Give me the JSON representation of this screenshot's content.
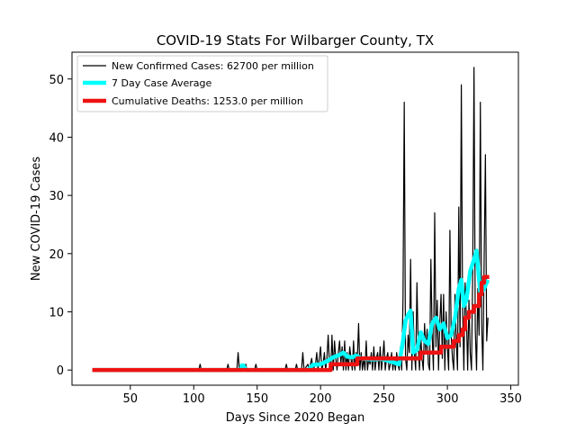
{
  "chart_data": {
    "type": "line",
    "title": "COVID-19 Stats For Wilbarger County, TX",
    "xlabel": "Days Since 2020 Began",
    "ylabel": "New COVID-19 Cases",
    "xlim": [
      4,
      356
    ],
    "ylim": [
      -2.6,
      54.6
    ],
    "xticks": [
      50,
      100,
      150,
      200,
      250,
      300,
      350
    ],
    "yticks": [
      0,
      10,
      20,
      30,
      40,
      50
    ],
    "grid": false,
    "legend_position": "top-left",
    "series": [
      {
        "name": "New Confirmed Cases: 62700 per million",
        "color": "#000000",
        "style": "thin-line",
        "points": [
          [
            20,
            0
          ],
          [
            104,
            0
          ],
          [
            105,
            1
          ],
          [
            106,
            0
          ],
          [
            126,
            0
          ],
          [
            127,
            1
          ],
          [
            128,
            0
          ],
          [
            134,
            0
          ],
          [
            135,
            3
          ],
          [
            136,
            0
          ],
          [
            140,
            0
          ],
          [
            141,
            1
          ],
          [
            142,
            0
          ],
          [
            148,
            0
          ],
          [
            149,
            1
          ],
          [
            150,
            0
          ],
          [
            172,
            0
          ],
          [
            173,
            1
          ],
          [
            174,
            0
          ],
          [
            180,
            0
          ],
          [
            181,
            1
          ],
          [
            182,
            0
          ],
          [
            185,
            0
          ],
          [
            186,
            3
          ],
          [
            187,
            0
          ],
          [
            190,
            1
          ],
          [
            191,
            0
          ],
          [
            193,
            2
          ],
          [
            194,
            0
          ],
          [
            196,
            1
          ],
          [
            197,
            3
          ],
          [
            198,
            0
          ],
          [
            199,
            2
          ],
          [
            200,
            4
          ],
          [
            201,
            0
          ],
          [
            202,
            1
          ],
          [
            203,
            3
          ],
          [
            204,
            0
          ],
          [
            205,
            2
          ],
          [
            206,
            6
          ],
          [
            207,
            1
          ],
          [
            208,
            0
          ],
          [
            209,
            6
          ],
          [
            210,
            0
          ],
          [
            211,
            5
          ],
          [
            212,
            2
          ],
          [
            213,
            0
          ],
          [
            214,
            3
          ],
          [
            215,
            5
          ],
          [
            216,
            1
          ],
          [
            217,
            4
          ],
          [
            218,
            0
          ],
          [
            219,
            5
          ],
          [
            220,
            0
          ],
          [
            221,
            3
          ],
          [
            222,
            0
          ],
          [
            223,
            4
          ],
          [
            224,
            2
          ],
          [
            225,
            0
          ],
          [
            226,
            5
          ],
          [
            227,
            0
          ],
          [
            228,
            3
          ],
          [
            229,
            2
          ],
          [
            230,
            8
          ],
          [
            231,
            0
          ],
          [
            232,
            3
          ],
          [
            233,
            0
          ],
          [
            234,
            2
          ],
          [
            235,
            0
          ],
          [
            236,
            5
          ],
          [
            237,
            0
          ],
          [
            238,
            2
          ],
          [
            239,
            1
          ],
          [
            240,
            3
          ],
          [
            241,
            0
          ],
          [
            242,
            4
          ],
          [
            243,
            0
          ],
          [
            244,
            2
          ],
          [
            245,
            3
          ],
          [
            246,
            0
          ],
          [
            247,
            4
          ],
          [
            248,
            0
          ],
          [
            249,
            2
          ],
          [
            250,
            5
          ],
          [
            251,
            0
          ],
          [
            252,
            2
          ],
          [
            253,
            3
          ],
          [
            254,
            0
          ],
          [
            255,
            1
          ],
          [
            256,
            3
          ],
          [
            257,
            0
          ],
          [
            258,
            2
          ],
          [
            259,
            0
          ],
          [
            260,
            3
          ],
          [
            261,
            1
          ],
          [
            262,
            0
          ],
          [
            263,
            4
          ],
          [
            264,
            0
          ],
          [
            265,
            12
          ],
          [
            266,
            46
          ],
          [
            267,
            2
          ],
          [
            268,
            0
          ],
          [
            269,
            6
          ],
          [
            270,
            3
          ],
          [
            271,
            19
          ],
          [
            272,
            0
          ],
          [
            273,
            10
          ],
          [
            274,
            3
          ],
          [
            275,
            0
          ],
          [
            276,
            15
          ],
          [
            277,
            4
          ],
          [
            278,
            0
          ],
          [
            279,
            6
          ],
          [
            280,
            2
          ],
          [
            281,
            0
          ],
          [
            282,
            8
          ],
          [
            283,
            3
          ],
          [
            284,
            7
          ],
          [
            285,
            1
          ],
          [
            286,
            0
          ],
          [
            287,
            19
          ],
          [
            288,
            6
          ],
          [
            289,
            0
          ],
          [
            290,
            27
          ],
          [
            291,
            4
          ],
          [
            292,
            12
          ],
          [
            293,
            0
          ],
          [
            294,
            8
          ],
          [
            295,
            13
          ],
          [
            296,
            2
          ],
          [
            297,
            13
          ],
          [
            298,
            0
          ],
          [
            299,
            10
          ],
          [
            300,
            4
          ],
          [
            301,
            0
          ],
          [
            302,
            24
          ],
          [
            303,
            6
          ],
          [
            304,
            2
          ],
          [
            305,
            0
          ],
          [
            306,
            13
          ],
          [
            307,
            5
          ],
          [
            308,
            0
          ],
          [
            309,
            28
          ],
          [
            310,
            4
          ],
          [
            311,
            49
          ],
          [
            312,
            10
          ],
          [
            313,
            0
          ],
          [
            314,
            15
          ],
          [
            315,
            9
          ],
          [
            316,
            0
          ],
          [
            317,
            12
          ],
          [
            318,
            3
          ],
          [
            319,
            0
          ],
          [
            320,
            17
          ],
          [
            321,
            52
          ],
          [
            322,
            7
          ],
          [
            323,
            0
          ],
          [
            324,
            14
          ],
          [
            325,
            6
          ],
          [
            326,
            46
          ],
          [
            327,
            8
          ],
          [
            328,
            0
          ],
          [
            329,
            19
          ],
          [
            330,
            37
          ],
          [
            331,
            5
          ],
          [
            332,
            9
          ]
        ]
      },
      {
        "name": "7 Day Case Average",
        "color": "#00ffff",
        "style": "thick-line",
        "points": [
          [
            20,
            0
          ],
          [
            137,
            0
          ],
          [
            138,
            0.8
          ],
          [
            139,
            0.8
          ],
          [
            140,
            0.5
          ],
          [
            141,
            0
          ],
          [
            190,
            0
          ],
          [
            194,
            0.9
          ],
          [
            200,
            1
          ],
          [
            205,
            1.5
          ],
          [
            210,
            2.2
          ],
          [
            215,
            2.6
          ],
          [
            218,
            3
          ],
          [
            221,
            2.3
          ],
          [
            225,
            2.2
          ],
          [
            228,
            2.5
          ],
          [
            232,
            2
          ],
          [
            240,
            1.8
          ],
          [
            248,
            1.9
          ],
          [
            255,
            1.5
          ],
          [
            259,
            1.2
          ],
          [
            262,
            1
          ],
          [
            265,
            5
          ],
          [
            267,
            8.5
          ],
          [
            269,
            9.5
          ],
          [
            271,
            10.2
          ],
          [
            273,
            3
          ],
          [
            276,
            3.5
          ],
          [
            279,
            6.5
          ],
          [
            282,
            5
          ],
          [
            285,
            4.5
          ],
          [
            288,
            8
          ],
          [
            291,
            9
          ],
          [
            294,
            7
          ],
          [
            297,
            8
          ],
          [
            300,
            5.5
          ],
          [
            303,
            6
          ],
          [
            306,
            9
          ],
          [
            309,
            14
          ],
          [
            311,
            15.5
          ],
          [
            313,
            11
          ],
          [
            315,
            12
          ],
          [
            318,
            17
          ],
          [
            321,
            19
          ],
          [
            323,
            20.5
          ],
          [
            326,
            13
          ],
          [
            329,
            14
          ],
          [
            332,
            15.5
          ]
        ]
      },
      {
        "name": "Cumulative Deaths: 1253.0 per million",
        "color": "#ee1111",
        "style": "thick-line",
        "points": [
          [
            20,
            0
          ],
          [
            208,
            0
          ],
          [
            208,
            1
          ],
          [
            229,
            1
          ],
          [
            229,
            2
          ],
          [
            279,
            2
          ],
          [
            279,
            3
          ],
          [
            295,
            3
          ],
          [
            295,
            4
          ],
          [
            305,
            4
          ],
          [
            305,
            5
          ],
          [
            309,
            5
          ],
          [
            309,
            6
          ],
          [
            312,
            6
          ],
          [
            312,
            7
          ],
          [
            314,
            7
          ],
          [
            314,
            9
          ],
          [
            317,
            9
          ],
          [
            317,
            10
          ],
          [
            321,
            10
          ],
          [
            321,
            11
          ],
          [
            325,
            11
          ],
          [
            325,
            13
          ],
          [
            327,
            13
          ],
          [
            327,
            15
          ],
          [
            329,
            15
          ],
          [
            329,
            16
          ],
          [
            333,
            16
          ]
        ]
      }
    ]
  }
}
